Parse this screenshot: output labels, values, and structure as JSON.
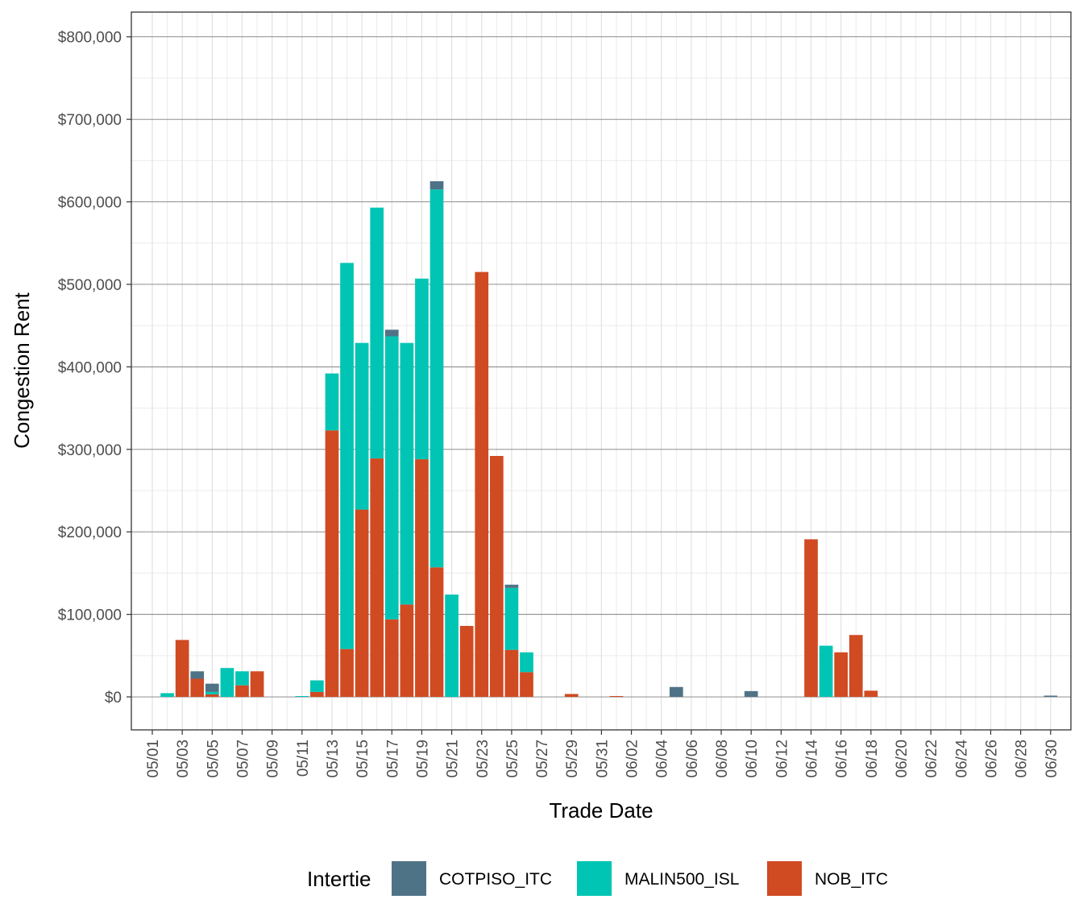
{
  "chart_data": {
    "type": "bar",
    "stacked": true,
    "xlabel": "Trade Date",
    "ylabel": "Congestion Rent",
    "ylim": [
      -40000,
      830000
    ],
    "y_ticks": [
      0,
      100000,
      200000,
      300000,
      400000,
      500000,
      600000,
      700000,
      800000
    ],
    "y_tick_labels": [
      "$0",
      "$100,000",
      "$200,000",
      "$300,000",
      "$400,000",
      "$500,000",
      "$600,000",
      "$700,000",
      "$800,000"
    ],
    "categories": [
      "05/01",
      "05/02",
      "05/03",
      "05/04",
      "05/05",
      "05/06",
      "05/07",
      "05/08",
      "05/09",
      "05/10",
      "05/11",
      "05/12",
      "05/13",
      "05/14",
      "05/15",
      "05/16",
      "05/17",
      "05/18",
      "05/19",
      "05/20",
      "05/21",
      "05/22",
      "05/23",
      "05/24",
      "05/25",
      "05/26",
      "05/27",
      "05/28",
      "05/29",
      "05/30",
      "05/31",
      "06/01",
      "06/02",
      "06/03",
      "06/04",
      "06/05",
      "06/06",
      "06/07",
      "06/08",
      "06/09",
      "06/10",
      "06/11",
      "06/12",
      "06/13",
      "06/14",
      "06/15",
      "06/16",
      "06/17",
      "06/18",
      "06/19",
      "06/20",
      "06/21",
      "06/22",
      "06/23",
      "06/24",
      "06/25",
      "06/26",
      "06/27",
      "06/28",
      "06/29",
      "06/30"
    ],
    "x_tick_labels": [
      "05/01",
      "05/03",
      "05/05",
      "05/07",
      "05/09",
      "05/11",
      "05/13",
      "05/15",
      "05/17",
      "05/19",
      "05/21",
      "05/23",
      "05/25",
      "05/27",
      "05/29",
      "05/31",
      "06/02",
      "06/04",
      "06/06",
      "06/08",
      "06/10",
      "06/12",
      "06/14",
      "06/16",
      "06/18",
      "06/20",
      "06/22",
      "06/24",
      "06/26",
      "06/28",
      "06/30"
    ],
    "legend_title": "Intertie",
    "legend_position": "bottom",
    "series": [
      {
        "name": "NOB_ITC",
        "color": "#D04A22",
        "values": [
          0,
          0,
          69000,
          22000,
          3000,
          0,
          14000,
          31000,
          0,
          0,
          0,
          6000,
          323000,
          58000,
          227000,
          289000,
          94000,
          112000,
          288000,
          157000,
          0,
          86000,
          515000,
          292000,
          57000,
          30000,
          0,
          0,
          3500,
          0,
          0,
          1000,
          0,
          0,
          0,
          0,
          0,
          0,
          0,
          0,
          0,
          0,
          0,
          0,
          191000,
          0,
          54000,
          75000,
          7500,
          0,
          0,
          0,
          0,
          0,
          0,
          0,
          0,
          0,
          0,
          0,
          0
        ]
      },
      {
        "name": "MALIN500_ISL",
        "color": "#00C5B4",
        "values": [
          0,
          4500,
          0,
          0,
          3000,
          35000,
          17000,
          0,
          0,
          0,
          1000,
          14000,
          69000,
          468000,
          202000,
          304000,
          343000,
          317000,
          219000,
          458000,
          124000,
          0,
          0,
          0,
          75000,
          24000,
          0,
          0,
          0,
          0,
          0,
          0,
          0,
          0,
          0,
          0,
          0,
          0,
          0,
          0,
          0,
          0,
          0,
          0,
          0,
          62000,
          0,
          0,
          0,
          0,
          0,
          0,
          0,
          0,
          0,
          0,
          0,
          0,
          0,
          0,
          0
        ]
      },
      {
        "name": "COTPISO_ITC",
        "color": "#4F7386",
        "values": [
          0,
          0,
          0,
          9000,
          10000,
          0,
          0,
          0,
          0,
          0,
          0,
          0,
          0,
          0,
          0,
          0,
          8000,
          0,
          0,
          10000,
          0,
          0,
          0,
          0,
          4000,
          0,
          0,
          0,
          0,
          0,
          0,
          0,
          0,
          0,
          0,
          12000,
          0,
          0,
          0,
          0,
          7000,
          0,
          0,
          0,
          0,
          0,
          0,
          0,
          0,
          0,
          0,
          0,
          0,
          0,
          0,
          0,
          0,
          0,
          0,
          0,
          1500
        ]
      }
    ]
  }
}
